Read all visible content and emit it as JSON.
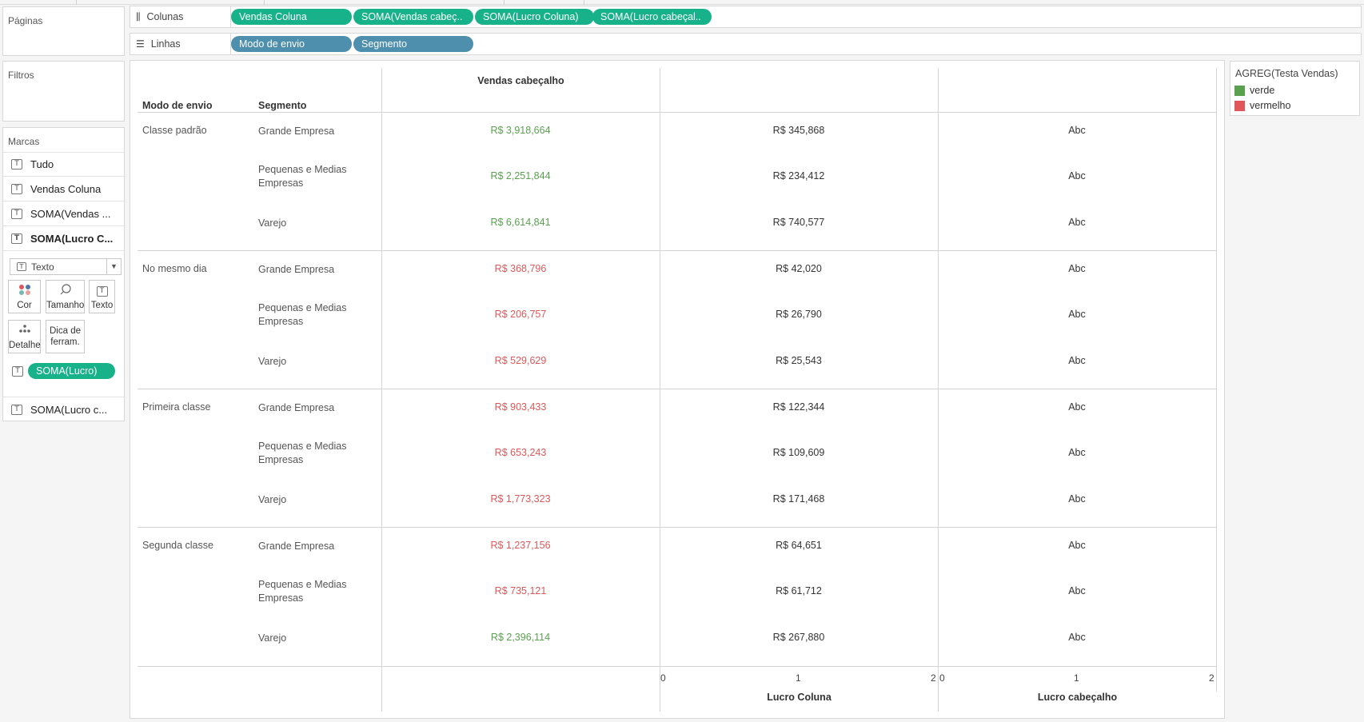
{
  "panels": {
    "pages_title": "Páginas",
    "filters_title": "Filtros",
    "marks_title": "Marcas"
  },
  "marks": {
    "rows": [
      "Tudo",
      "Vendas Coluna",
      "SOMA(Vendas ...",
      "SOMA(Lucro C..."
    ],
    "mark_type": "Texto",
    "buttons": {
      "color": "Cor",
      "size": "Tamanho",
      "text": "Texto",
      "detail": "Detalhe",
      "tooltip": "Dica de ferram."
    },
    "field_pill": "SOMA(Lucro)",
    "last_row": "SOMA(Lucro c..."
  },
  "shelves": {
    "columns_label": "Colunas",
    "rows_label": "Linhas",
    "columns": [
      "Vendas Coluna",
      "SOMA(Vendas cabeç..",
      "SOMA(Lucro Coluna)",
      "SOMA(Lucro cabeçal.."
    ],
    "rows": [
      "Modo de envio",
      "Segmento"
    ]
  },
  "view": {
    "header_shipmode": "Modo de envio",
    "header_segment": "Segmento",
    "header_sales": "Vendas cabeçalho",
    "footer_profit_col": "Lucro Coluna",
    "footer_profit_header": "Lucro cabeçalho",
    "axis_ticks": [
      "0",
      "1",
      "2"
    ],
    "groups": [
      {
        "shipmode": "Classe padrão",
        "rows": [
          {
            "segment": "Grande Empresa",
            "sales": "R$ 3,918,664",
            "status": "verde",
            "profit": "R$ 345,868",
            "abc": "Abc"
          },
          {
            "segment": "Pequenas e Medias Empresas",
            "sales": "R$ 2,251,844",
            "status": "verde",
            "profit": "R$ 234,412",
            "abc": "Abc"
          },
          {
            "segment": "Varejo",
            "sales": "R$ 6,614,841",
            "status": "verde",
            "profit": "R$ 740,577",
            "abc": "Abc"
          }
        ]
      },
      {
        "shipmode": "No mesmo dia",
        "rows": [
          {
            "segment": "Grande Empresa",
            "sales": "R$ 368,796",
            "status": "vermelho",
            "profit": "R$ 42,020",
            "abc": "Abc"
          },
          {
            "segment": "Pequenas e Medias Empresas",
            "sales": "R$ 206,757",
            "status": "vermelho",
            "profit": "R$ 26,790",
            "abc": "Abc"
          },
          {
            "segment": "Varejo",
            "sales": "R$ 529,629",
            "status": "vermelho",
            "profit": "R$ 25,543",
            "abc": "Abc"
          }
        ]
      },
      {
        "shipmode": "Primeira classe",
        "rows": [
          {
            "segment": "Grande Empresa",
            "sales": "R$ 903,433",
            "status": "vermelho",
            "profit": "R$ 122,344",
            "abc": "Abc"
          },
          {
            "segment": "Pequenas e Medias Empresas",
            "sales": "R$ 653,243",
            "status": "vermelho",
            "profit": "R$ 109,609",
            "abc": "Abc"
          },
          {
            "segment": "Varejo",
            "sales": "R$ 1,773,323",
            "status": "vermelho",
            "profit": "R$ 171,468",
            "abc": "Abc"
          }
        ]
      },
      {
        "shipmode": "Segunda classe",
        "rows": [
          {
            "segment": "Grande Empresa",
            "sales": "R$ 1,237,156",
            "status": "vermelho",
            "profit": "R$ 64,651",
            "abc": "Abc"
          },
          {
            "segment": "Pequenas e Medias Empresas",
            "sales": "R$ 735,121",
            "status": "vermelho",
            "profit": "R$ 61,712",
            "abc": "Abc"
          },
          {
            "segment": "Varejo",
            "sales": "R$ 2,396,114",
            "status": "verde",
            "profit": "R$ 267,880",
            "abc": "Abc"
          }
        ]
      }
    ]
  },
  "legend": {
    "title": "AGREG(Testa Vendas)",
    "items": [
      {
        "label": "verde",
        "color": "#59a14f"
      },
      {
        "label": "vermelho",
        "color": "#e15759"
      }
    ]
  },
  "colors": {
    "verde": "#59a14f",
    "vermelho": "#e15759",
    "pill_green": "#17b28a",
    "pill_blue": "#4f8fae"
  }
}
